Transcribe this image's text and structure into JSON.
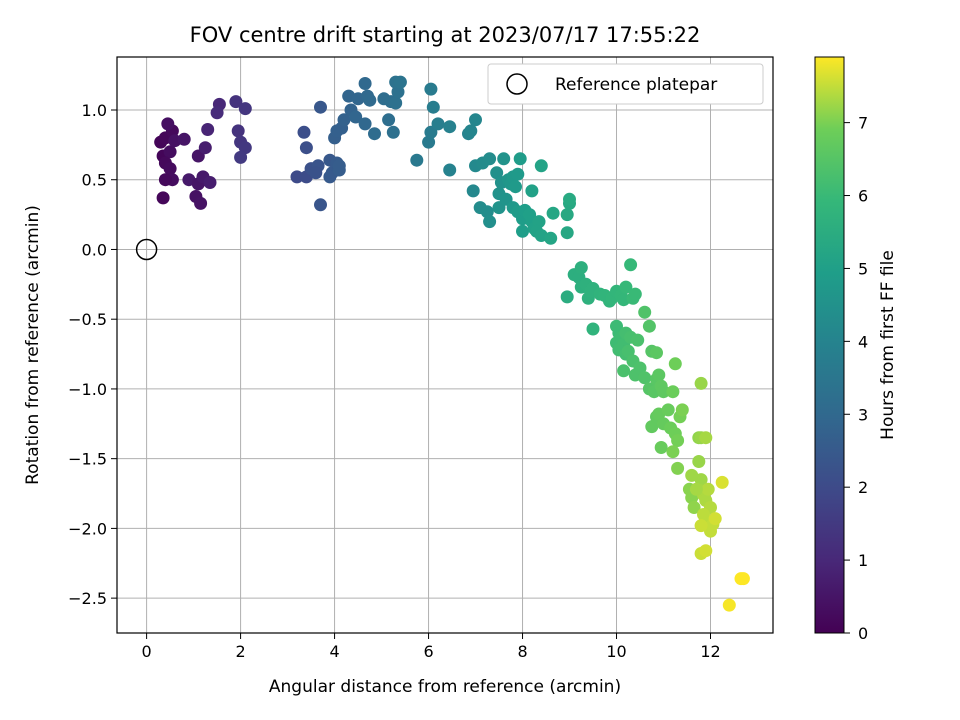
{
  "chart_data": {
    "type": "scatter",
    "title": "FOV centre drift starting at 2023/07/17 17:55:22",
    "xlabel": "Angular distance from reference (arcmin)",
    "ylabel": "Rotation from reference (arcmin)",
    "xlim": [
      -0.63,
      13.33
    ],
    "ylim": [
      -2.75,
      1.38
    ],
    "xticks": [
      0,
      2,
      4,
      6,
      8,
      10,
      12
    ],
    "yticks": [
      -2.5,
      -2.0,
      -1.5,
      -1.0,
      -0.5,
      0.0,
      0.5,
      1.0
    ],
    "xtick_labels": [
      "0",
      "2",
      "4",
      "6",
      "8",
      "10",
      "12"
    ],
    "ytick_labels": [
      "−2.5",
      "−2.0",
      "−1.5",
      "−1.0",
      "−0.5",
      "0.0",
      "0.5",
      "1.0"
    ],
    "grid": true,
    "legend": {
      "position": "top-right",
      "entries": [
        "Reference platepar"
      ]
    },
    "reference_point": {
      "x": 0,
      "y": 0
    },
    "colorbar": {
      "label": "Hours from first FF file",
      "colormap": "viridis",
      "range": [
        0,
        7.9
      ],
      "ticks": [
        0,
        1,
        2,
        3,
        4,
        5,
        6,
        7
      ],
      "tick_labels": [
        "0",
        "1",
        "2",
        "3",
        "4",
        "5",
        "6",
        "7"
      ]
    },
    "points": [
      [
        0.3,
        0.77,
        0.1
      ],
      [
        0.4,
        0.8,
        0.15
      ],
      [
        0.55,
        0.85,
        0.2
      ],
      [
        0.35,
        0.67,
        0.1
      ],
      [
        0.5,
        0.7,
        0.3
      ],
      [
        0.45,
        0.9,
        0.35
      ],
      [
        0.6,
        0.78,
        0.4
      ],
      [
        0.8,
        0.79,
        0.5
      ],
      [
        0.4,
        0.62,
        0.2
      ],
      [
        0.5,
        0.58,
        0.25
      ],
      [
        0.55,
        0.5,
        0.3
      ],
      [
        0.4,
        0.5,
        0.2
      ],
      [
        0.35,
        0.37,
        0.15
      ],
      [
        0.9,
        0.5,
        0.6
      ],
      [
        1.1,
        0.47,
        0.5
      ],
      [
        1.2,
        0.52,
        0.6
      ],
      [
        1.35,
        0.48,
        0.7
      ],
      [
        1.05,
        0.38,
        0.4
      ],
      [
        1.15,
        0.33,
        0.45
      ],
      [
        1.1,
        0.67,
        0.5
      ],
      [
        1.25,
        0.73,
        0.7
      ],
      [
        1.3,
        0.86,
        0.9
      ],
      [
        1.55,
        1.04,
        1.0
      ],
      [
        1.5,
        0.98,
        1.1
      ],
      [
        1.9,
        1.06,
        1.3
      ],
      [
        2.1,
        1.01,
        1.4
      ],
      [
        1.95,
        0.85,
        1.3
      ],
      [
        2.0,
        0.77,
        1.4
      ],
      [
        2.1,
        0.73,
        1.45
      ],
      [
        2.0,
        0.66,
        1.5
      ],
      [
        3.2,
        0.52,
        2.0
      ],
      [
        3.4,
        0.52,
        2.05
      ],
      [
        3.35,
        0.84,
        2.1
      ],
      [
        3.4,
        0.73,
        2.15
      ],
      [
        3.5,
        0.58,
        2.2
      ],
      [
        3.65,
        0.6,
        2.3
      ],
      [
        3.6,
        0.55,
        2.25
      ],
      [
        3.7,
        0.32,
        2.35
      ],
      [
        3.7,
        1.02,
        2.4
      ],
      [
        3.9,
        0.64,
        2.45
      ],
      [
        3.95,
        0.55,
        2.5
      ],
      [
        3.9,
        0.52,
        2.5
      ],
      [
        4.05,
        0.62,
        2.55
      ],
      [
        4.1,
        0.57,
        2.6
      ],
      [
        4.1,
        0.6,
        2.6
      ],
      [
        4.0,
        0.8,
        2.65
      ],
      [
        4.05,
        0.85,
        2.7
      ],
      [
        4.15,
        0.87,
        2.7
      ],
      [
        4.2,
        0.93,
        2.75
      ],
      [
        4.35,
        1.0,
        2.8
      ],
      [
        4.3,
        1.1,
        2.85
      ],
      [
        4.5,
        1.08,
        2.9
      ],
      [
        4.45,
        0.95,
        2.9
      ],
      [
        4.65,
        0.9,
        2.95
      ],
      [
        4.7,
        1.1,
        3.0
      ],
      [
        4.75,
        1.07,
        3.05
      ],
      [
        4.65,
        1.19,
        3.0
      ],
      [
        4.85,
        0.83,
        3.1
      ],
      [
        5.05,
        1.08,
        3.15
      ],
      [
        5.15,
        0.93,
        3.2
      ],
      [
        5.2,
        1.06,
        3.2
      ],
      [
        5.25,
        0.84,
        3.25
      ],
      [
        5.3,
        1.05,
        3.3
      ],
      [
        5.35,
        1.13,
        3.3
      ],
      [
        5.3,
        1.2,
        3.35
      ],
      [
        5.4,
        1.2,
        3.4
      ],
      [
        5.75,
        0.64,
        3.6
      ],
      [
        6.0,
        0.77,
        3.65
      ],
      [
        6.05,
        0.84,
        3.7
      ],
      [
        6.1,
        1.02,
        3.75
      ],
      [
        6.05,
        1.15,
        3.7
      ],
      [
        6.2,
        0.9,
        3.8
      ],
      [
        6.45,
        0.88,
        3.9
      ],
      [
        6.45,
        0.57,
        3.95
      ],
      [
        6.85,
        0.83,
        4.0
      ],
      [
        6.9,
        0.85,
        4.05
      ],
      [
        7.0,
        0.93,
        4.1
      ],
      [
        6.95,
        0.42,
        4.15
      ],
      [
        7.0,
        0.6,
        4.2
      ],
      [
        7.15,
        0.62,
        4.25
      ],
      [
        7.3,
        0.65,
        4.3
      ],
      [
        7.1,
        0.3,
        4.3
      ],
      [
        7.25,
        0.27,
        4.35
      ],
      [
        7.3,
        0.2,
        4.4
      ],
      [
        7.45,
        0.55,
        4.45
      ],
      [
        7.55,
        0.48,
        4.5
      ],
      [
        7.5,
        0.4,
        4.5
      ],
      [
        7.6,
        0.65,
        4.55
      ],
      [
        7.5,
        0.3,
        4.55
      ],
      [
        7.65,
        0.36,
        4.6
      ],
      [
        7.7,
        0.5,
        4.65
      ],
      [
        7.75,
        0.47,
        4.7
      ],
      [
        7.8,
        0.3,
        4.75
      ],
      [
        7.8,
        0.52,
        4.75
      ],
      [
        7.85,
        0.45,
        4.8
      ],
      [
        7.9,
        0.54,
        4.8
      ],
      [
        7.95,
        0.65,
        4.85
      ],
      [
        7.9,
        0.27,
        4.85
      ],
      [
        8.0,
        0.22,
        4.9
      ],
      [
        8.05,
        0.28,
        4.95
      ],
      [
        8.0,
        0.13,
        4.95
      ],
      [
        8.15,
        0.25,
        5.0
      ],
      [
        8.2,
        0.2,
        5.0
      ],
      [
        8.2,
        0.42,
        5.05
      ],
      [
        8.25,
        0.15,
        5.05
      ],
      [
        8.35,
        0.2,
        5.1
      ],
      [
        8.3,
        0.13,
        5.1
      ],
      [
        8.4,
        0.1,
        5.15
      ],
      [
        8.4,
        0.6,
        5.15
      ],
      [
        8.6,
        0.08,
        5.2
      ],
      [
        8.65,
        0.26,
        5.25
      ],
      [
        8.95,
        0.12,
        5.3
      ],
      [
        8.95,
        0.25,
        5.35
      ],
      [
        9.0,
        0.33,
        5.35
      ],
      [
        9.0,
        0.36,
        5.4
      ],
      [
        8.95,
        -0.34,
        5.5
      ],
      [
        9.1,
        -0.18,
        5.55
      ],
      [
        9.2,
        -0.2,
        5.55
      ],
      [
        9.25,
        -0.13,
        5.6
      ],
      [
        9.25,
        -0.27,
        5.6
      ],
      [
        9.35,
        -0.25,
        5.65
      ],
      [
        9.4,
        -0.35,
        5.65
      ],
      [
        9.45,
        -0.3,
        5.7
      ],
      [
        9.5,
        -0.28,
        5.7
      ],
      [
        9.5,
        -0.57,
        5.75
      ],
      [
        9.65,
        -0.32,
        5.75
      ],
      [
        9.75,
        -0.33,
        5.8
      ],
      [
        9.85,
        -0.37,
        5.8
      ],
      [
        9.9,
        -0.35,
        5.85
      ],
      [
        10.0,
        -0.3,
        5.85
      ],
      [
        10.1,
        -0.33,
        5.9
      ],
      [
        10.15,
        -0.36,
        5.9
      ],
      [
        10.2,
        -0.27,
        5.95
      ],
      [
        10.3,
        -0.11,
        5.95
      ],
      [
        10.35,
        -0.35,
        6.0
      ],
      [
        10.4,
        -0.32,
        6.0
      ],
      [
        10.0,
        -0.55,
        6.05
      ],
      [
        10.05,
        -0.6,
        6.05
      ],
      [
        10.0,
        -0.67,
        6.1
      ],
      [
        10.1,
        -0.63,
        6.1
      ],
      [
        10.15,
        -0.68,
        6.15
      ],
      [
        10.05,
        -0.72,
        6.15
      ],
      [
        10.2,
        -0.75,
        6.2
      ],
      [
        10.2,
        -0.6,
        6.2
      ],
      [
        10.3,
        -0.63,
        6.25
      ],
      [
        10.25,
        -0.73,
        6.25
      ],
      [
        10.15,
        -0.87,
        6.3
      ],
      [
        10.35,
        -0.8,
        6.3
      ],
      [
        10.4,
        -0.9,
        6.35
      ],
      [
        10.5,
        -0.85,
        6.35
      ],
      [
        10.6,
        -0.45,
        6.4
      ],
      [
        10.6,
        -0.92,
        6.4
      ],
      [
        10.7,
        -0.55,
        6.45
      ],
      [
        10.7,
        -1.0,
        6.5
      ],
      [
        10.75,
        -0.73,
        6.5
      ],
      [
        10.8,
        -1.02,
        6.55
      ],
      [
        10.85,
        -0.93,
        6.55
      ],
      [
        10.9,
        -0.9,
        6.6
      ],
      [
        10.85,
        -0.74,
        6.6
      ],
      [
        10.95,
        -0.98,
        6.65
      ],
      [
        11.0,
        -1.02,
        6.65
      ],
      [
        10.75,
        -1.27,
        6.7
      ],
      [
        10.85,
        -1.2,
        6.7
      ],
      [
        10.9,
        -1.18,
        6.75
      ],
      [
        11.0,
        -1.25,
        6.75
      ],
      [
        10.95,
        -1.42,
        6.8
      ],
      [
        11.1,
        -1.15,
        6.8
      ],
      [
        11.15,
        -1.28,
        6.85
      ],
      [
        11.2,
        -1.02,
        6.85
      ],
      [
        11.25,
        -0.82,
        6.9
      ],
      [
        11.25,
        -1.32,
        6.9
      ],
      [
        11.3,
        -1.37,
        6.95
      ],
      [
        11.35,
        -1.2,
        6.95
      ],
      [
        11.4,
        -1.15,
        7.0
      ],
      [
        11.2,
        -1.45,
        7.0
      ],
      [
        11.3,
        -1.57,
        7.05
      ],
      [
        11.55,
        -1.72,
        7.1
      ],
      [
        11.6,
        -1.78,
        7.1
      ],
      [
        11.65,
        -1.85,
        7.15
      ],
      [
        11.75,
        -1.35,
        7.15
      ],
      [
        11.8,
        -1.35,
        7.2
      ],
      [
        11.75,
        -1.52,
        7.2
      ],
      [
        11.8,
        -1.65,
        7.25
      ],
      [
        11.8,
        -0.96,
        7.2
      ],
      [
        11.9,
        -1.35,
        7.3
      ],
      [
        11.8,
        -1.73,
        7.3
      ],
      [
        11.85,
        -1.76,
        7.35
      ],
      [
        11.9,
        -1.8,
        7.35
      ],
      [
        11.95,
        -1.72,
        7.4
      ],
      [
        12.0,
        -1.85,
        7.4
      ],
      [
        11.85,
        -1.9,
        7.45
      ],
      [
        11.95,
        -1.95,
        7.45
      ],
      [
        12.05,
        -1.97,
        7.5
      ],
      [
        12.0,
        -2.02,
        7.5
      ],
      [
        11.8,
        -1.98,
        7.55
      ],
      [
        11.8,
        -2.18,
        7.55
      ],
      [
        11.9,
        -2.16,
        7.6
      ],
      [
        12.1,
        -1.93,
        7.6
      ],
      [
        12.25,
        -1.67,
        7.65
      ],
      [
        12.4,
        -2.55,
        7.85
      ],
      [
        12.65,
        -2.36,
        7.9
      ],
      [
        12.7,
        -2.36,
        7.9
      ],
      [
        11.7,
        -1.72,
        7.3
      ],
      [
        11.6,
        -1.62,
        7.25
      ],
      [
        10.45,
        -0.65,
        6.3
      ]
    ]
  }
}
